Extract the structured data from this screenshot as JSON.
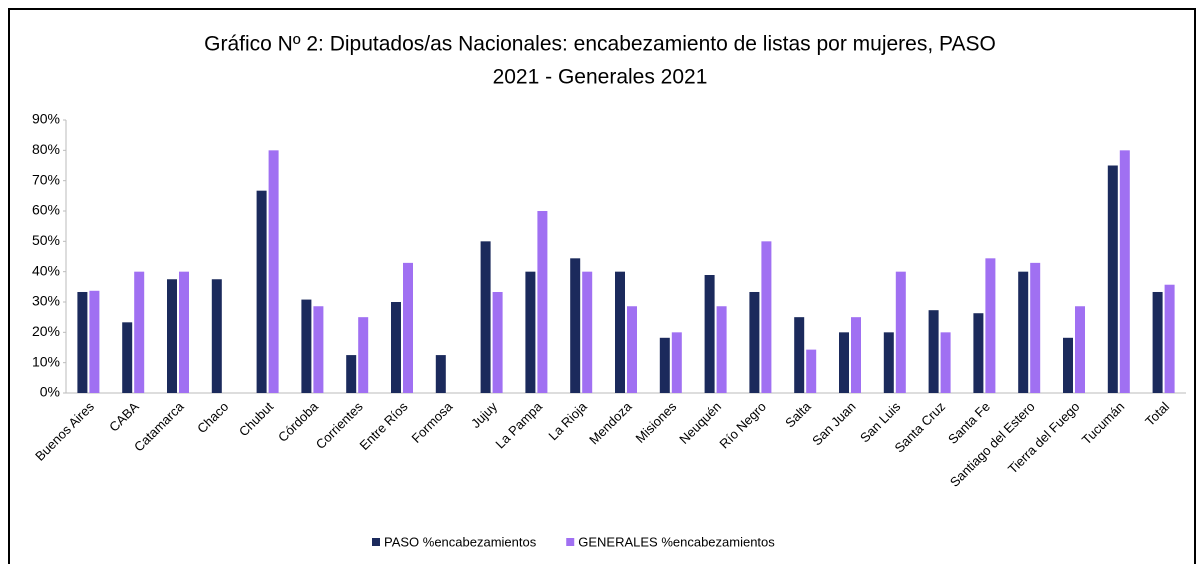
{
  "chart_data": {
    "type": "bar",
    "title": [
      "Gráfico Nº 2: Diputados/as Nacionales: encabezamiento de listas por mujeres, PASO",
      "2021 - Generales 2021"
    ],
    "categories": [
      "Buenos Aires",
      "CABA",
      "Catamarca",
      "Chaco",
      "Chubut",
      "Córdoba",
      "Corrientes",
      "Entre Ríos",
      "Formosa",
      "Jujuy",
      "La Pampa",
      "La Rioja",
      "Mendoza",
      "Misiones",
      "Neuquén",
      "Río Negro",
      "Salta",
      "San Juan",
      "San Luis",
      "Santa Cruz",
      "Santa Fe",
      "Santiago del Estero",
      "Tierra del Fuego",
      "Tucumán",
      "Total"
    ],
    "series": [
      {
        "name": "PASO %encabezamientos",
        "color": "#1b2a5c",
        "values": [
          33.3,
          23.3,
          37.5,
          37.5,
          66.7,
          30.8,
          12.5,
          30,
          12.5,
          50,
          40,
          44.4,
          40,
          18.2,
          38.9,
          33.3,
          25,
          20,
          20,
          27.3,
          26.3,
          40,
          18.2,
          75,
          33.3
        ]
      },
      {
        "name": "GENERALES %encabezamientos",
        "color": "#a070f2",
        "values": [
          33.7,
          40,
          40,
          0,
          80,
          28.6,
          25,
          42.9,
          0,
          33.3,
          60,
          40,
          28.6,
          20,
          28.6,
          50,
          14.3,
          25,
          40,
          20,
          44.4,
          42.9,
          28.6,
          80,
          35.7
        ]
      }
    ],
    "ylim": [
      0,
      90
    ],
    "yticks": [
      {
        "value": 0,
        "label": "0%"
      },
      {
        "value": 10,
        "label": "10%"
      },
      {
        "value": 20,
        "label": "20%"
      },
      {
        "value": 30,
        "label": "30%"
      },
      {
        "value": 40,
        "label": "40%"
      },
      {
        "value": 50,
        "label": "50%"
      },
      {
        "value": 60,
        "label": "60%"
      },
      {
        "value": 70,
        "label": "70%"
      },
      {
        "value": 80,
        "label": "80%"
      },
      {
        "value": 90,
        "label": "90%"
      }
    ],
    "grid": false,
    "legend": "bottom"
  }
}
